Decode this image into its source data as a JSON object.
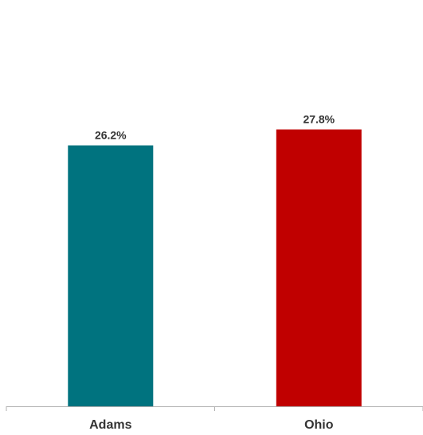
{
  "chart_data": {
    "type": "bar",
    "categories": [
      "Adams",
      "Ohio"
    ],
    "values": [
      26.2,
      27.8
    ],
    "value_labels": [
      "26.2%",
      "27.8%"
    ],
    "colors": [
      "#00737f",
      "#c00000"
    ],
    "ylim": [
      0,
      40
    ],
    "grid": false,
    "legend": "none"
  }
}
